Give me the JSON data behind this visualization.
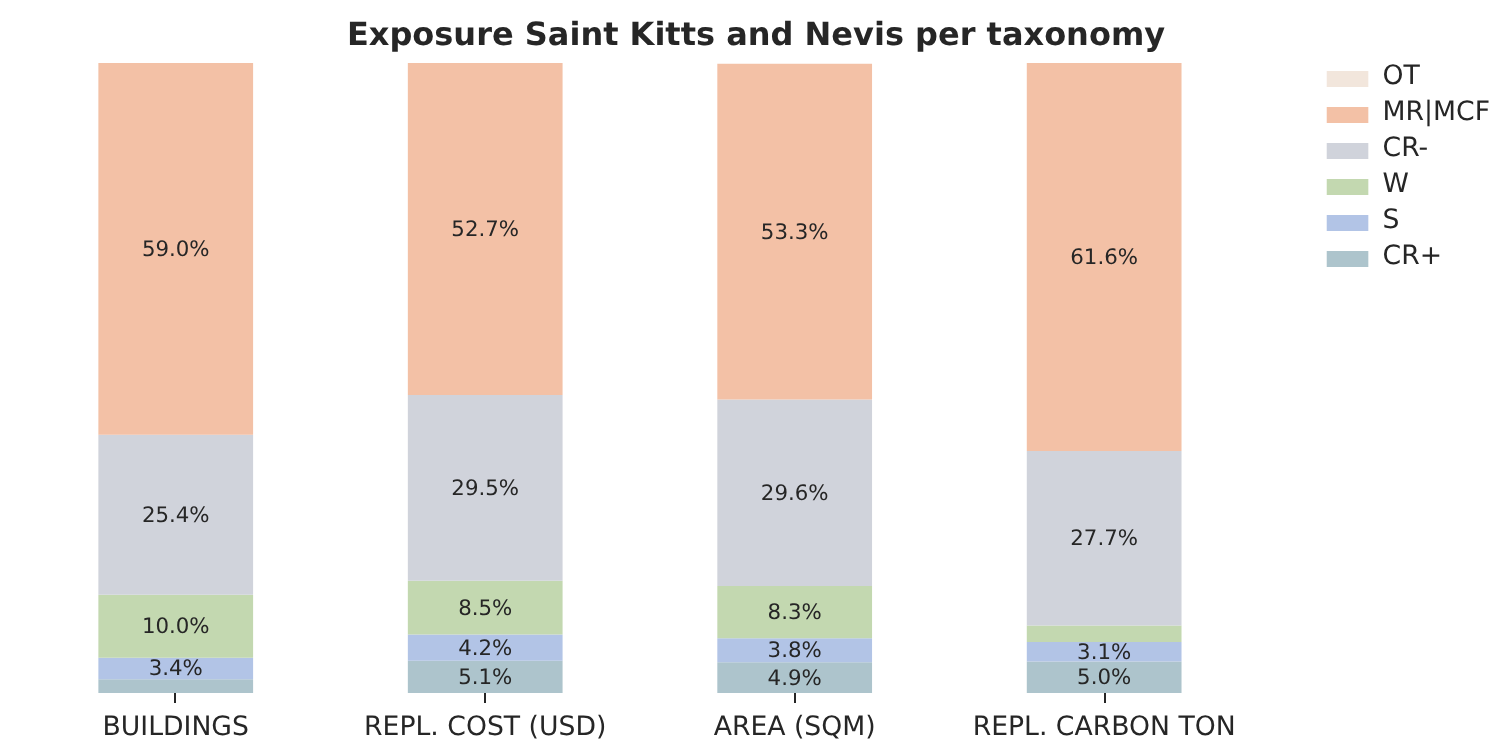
{
  "chart_data": {
    "type": "bar",
    "title": "Exposure Saint Kitts and Nevis per taxonomy",
    "stacked": true,
    "legend": "top right",
    "grid": false,
    "categories": [
      "BUILDINGS",
      "REPL. COST (USD)",
      "AREA (SQM)",
      "REPL. CARBON TON"
    ],
    "series": [
      {
        "name": "CR+",
        "color": "#adc4cc",
        "values": [
          2.2,
          5.1,
          4.9,
          5.0
        ],
        "value_labels": [
          null,
          "5.1%",
          "4.9%",
          "5.0%"
        ]
      },
      {
        "name": "S",
        "color": "#b2c4e6",
        "values": [
          3.4,
          4.2,
          3.8,
          3.1
        ],
        "value_labels": [
          "3.4%",
          "4.2%",
          "3.8%",
          "3.1%"
        ]
      },
      {
        "name": "W",
        "color": "#c3d8b0",
        "values": [
          10.0,
          8.5,
          8.3,
          2.6
        ],
        "value_labels": [
          "10.0%",
          "8.5%",
          "8.3%",
          null
        ]
      },
      {
        "name": "CR-",
        "color": "#d0d3db",
        "values": [
          25.4,
          29.5,
          29.6,
          27.7
        ],
        "value_labels": [
          "25.4%",
          "29.5%",
          "29.6%",
          "27.7%"
        ]
      },
      {
        "name": "MR|MCF",
        "color": "#f3c1a6",
        "values": [
          59.0,
          52.7,
          53.3,
          61.6
        ],
        "value_labels": [
          "59.0%",
          "52.7%",
          "53.3%",
          "61.6%"
        ]
      },
      {
        "name": "OT",
        "color": "#f2e6dc",
        "values": [
          0,
          0,
          0,
          0
        ],
        "value_labels": [
          null,
          null,
          null,
          null
        ]
      }
    ]
  }
}
